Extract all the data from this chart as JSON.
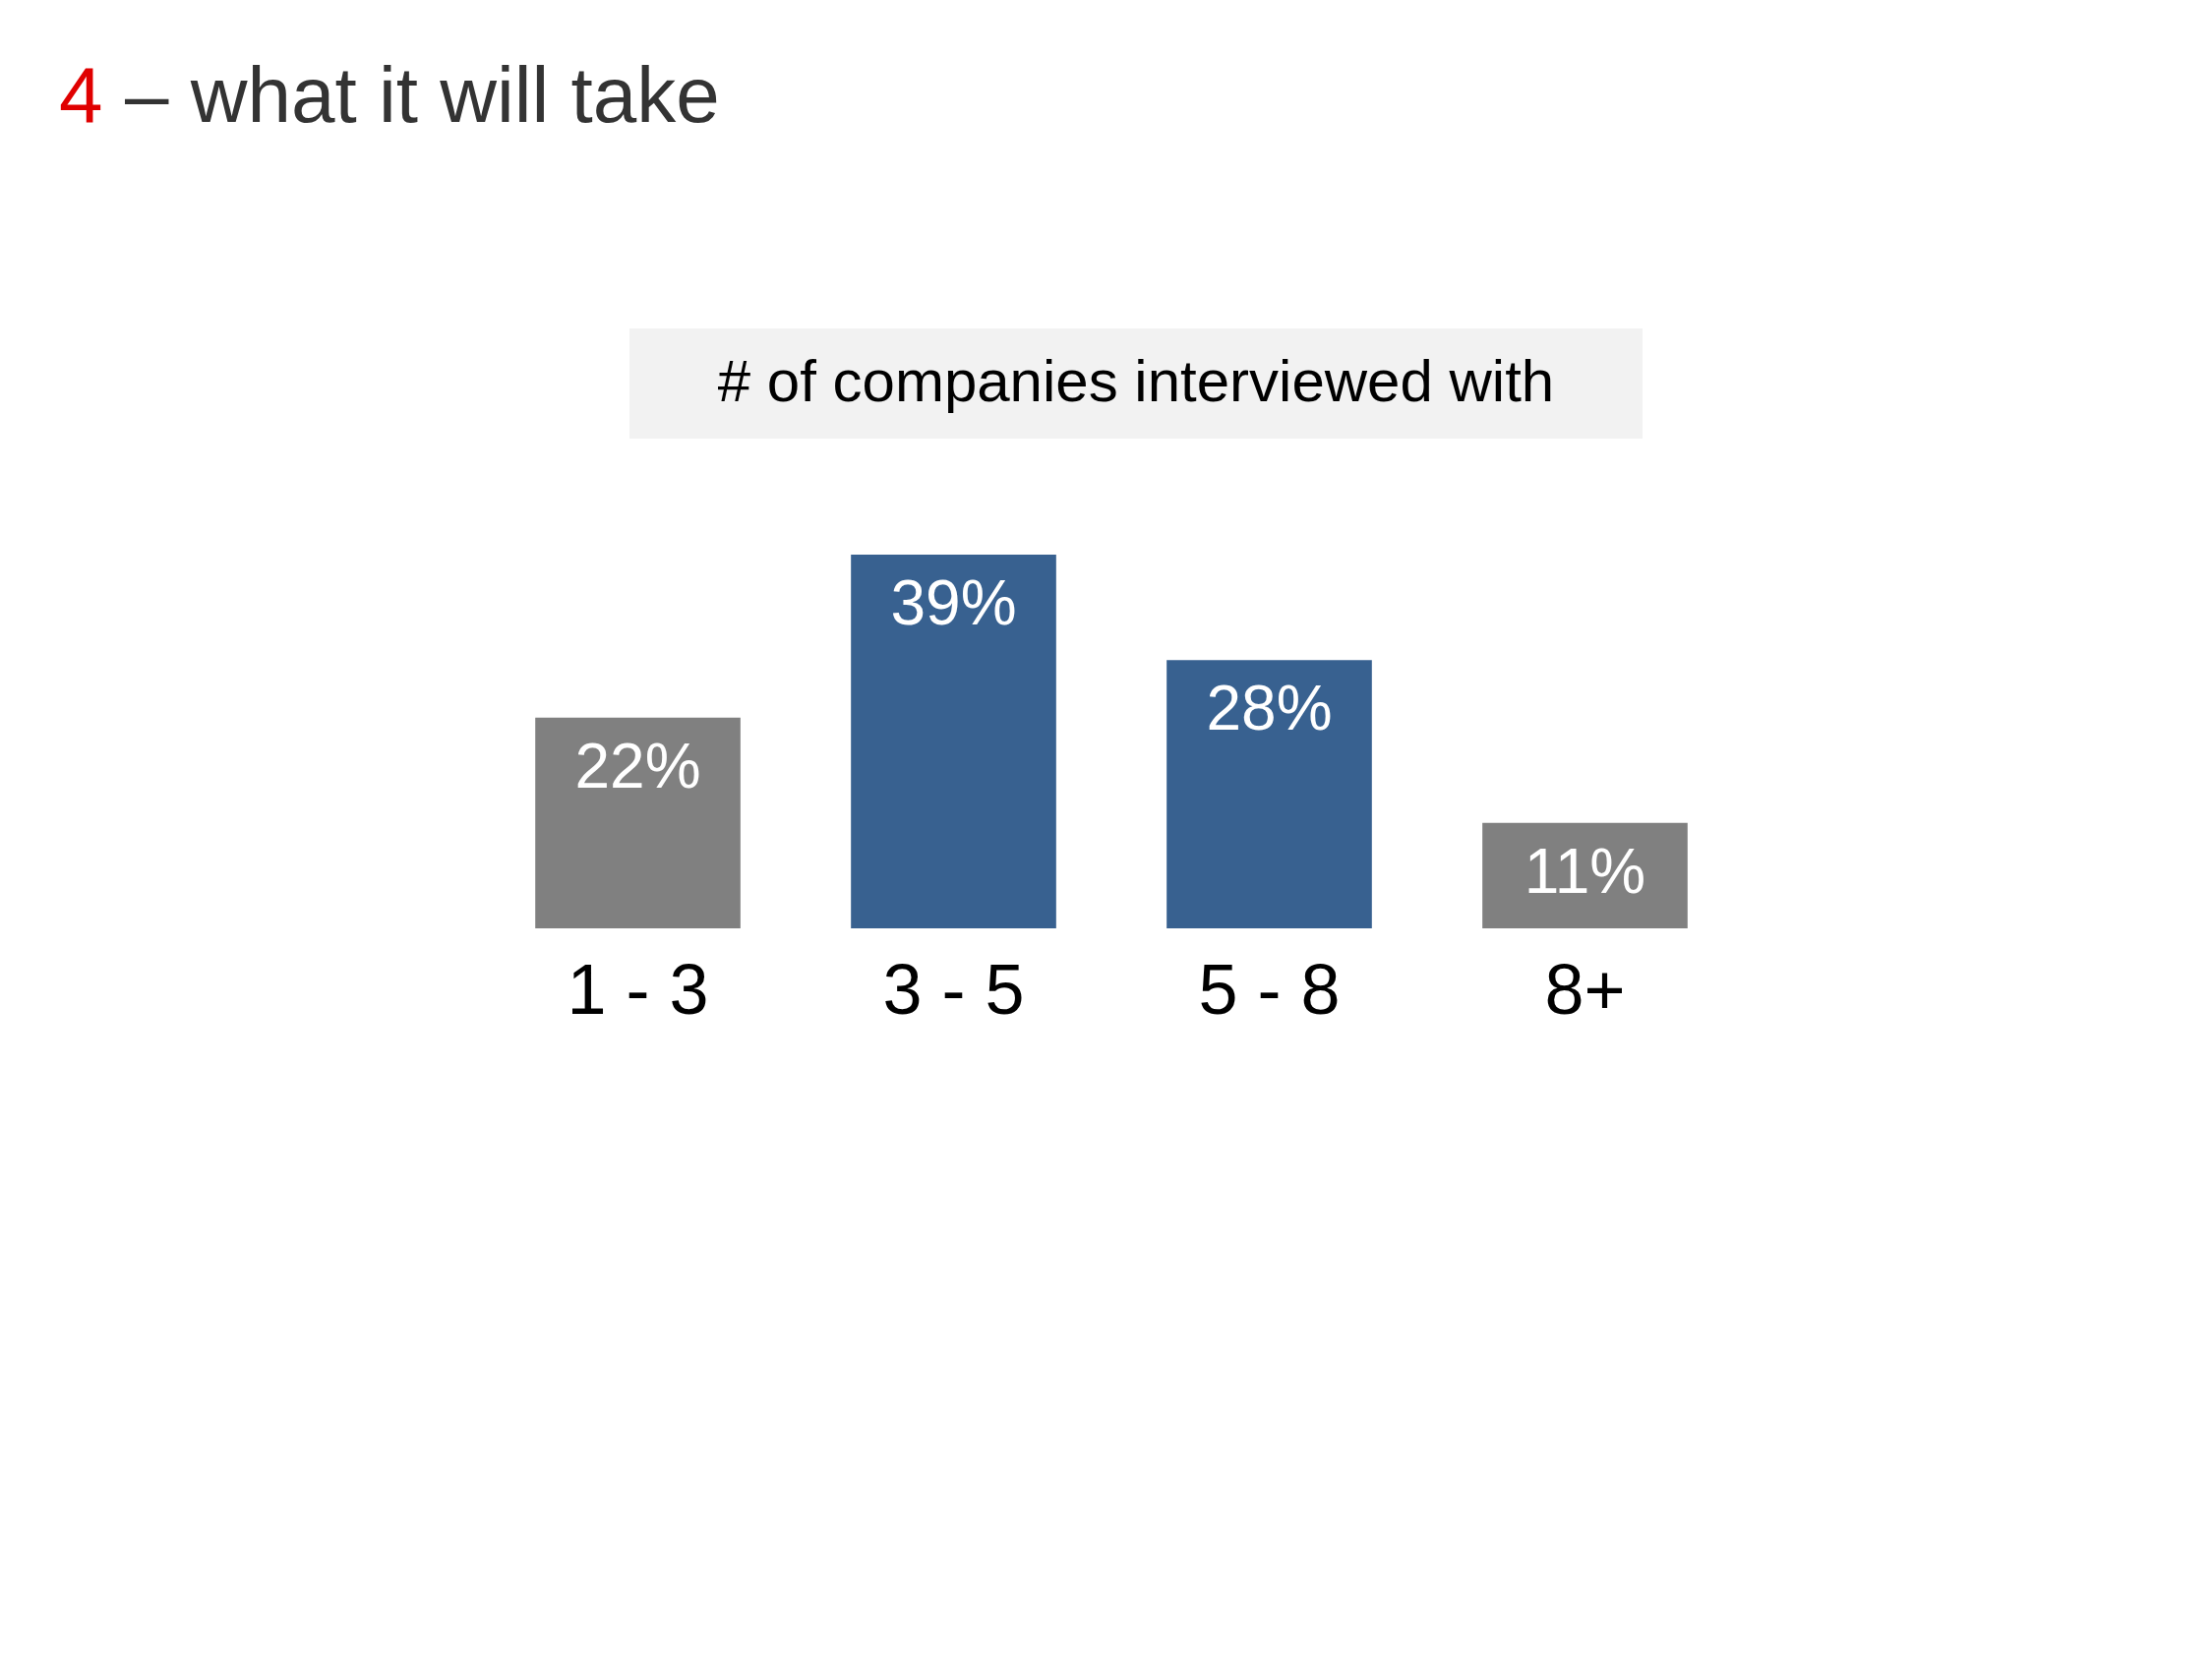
{
  "chart_data": {
    "type": "bar",
    "title": "4 – what it will take",
    "subtitle": "# of companies interviewed with",
    "categories": [
      "1 - 3",
      "3 - 5",
      "5 - 8",
      "8+"
    ],
    "values": [
      22,
      39,
      28,
      11
    ],
    "value_labels": [
      "22%",
      "39%",
      "28%",
      "11%"
    ],
    "colors": [
      "#808080",
      "#386190",
      "#386190",
      "#808080"
    ]
  }
}
